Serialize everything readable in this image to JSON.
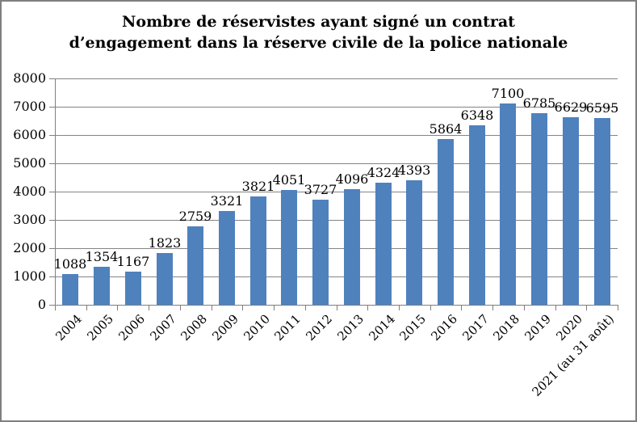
{
  "frame": {
    "background": "#ffffff",
    "border_color": "#7f7f7f"
  },
  "chart_data": {
    "type": "bar",
    "title": "Nombre de réservistes ayant signé un contrat d’engagement dans la réserve civile de la police nationale",
    "title_lines": [
      "Nombre de réservistes ayant signé un contrat",
      "d’engagement dans la réserve civile de la police nationale"
    ],
    "categories": [
      "2004",
      "2005",
      "2006",
      "2007",
      "2008",
      "2009",
      "2010",
      "2011",
      "2012",
      "2013",
      "2014",
      "2015",
      "2016",
      "2017",
      "2018",
      "2019",
      "2020",
      "2021 (au 31 août)"
    ],
    "values": [
      1088,
      1354,
      1167,
      1823,
      2759,
      3321,
      3821,
      4051,
      3727,
      4096,
      4324,
      4393,
      5864,
      6348,
      7100,
      6785,
      6629,
      6595
    ],
    "xlabel": "",
    "ylabel": "",
    "ylim": [
      0,
      8000
    ],
    "y_tick_step": 1000,
    "y_tick_labels": [
      "0",
      "1000",
      "2000",
      "3000",
      "4000",
      "5000",
      "6000",
      "7000",
      "8000"
    ],
    "grid": true,
    "legend_position": "none",
    "data_labels": true,
    "bar_color": "#4F81BD",
    "grid_color": "#848484",
    "axis_color": "#7f7f7f",
    "text_color": "#000000"
  }
}
